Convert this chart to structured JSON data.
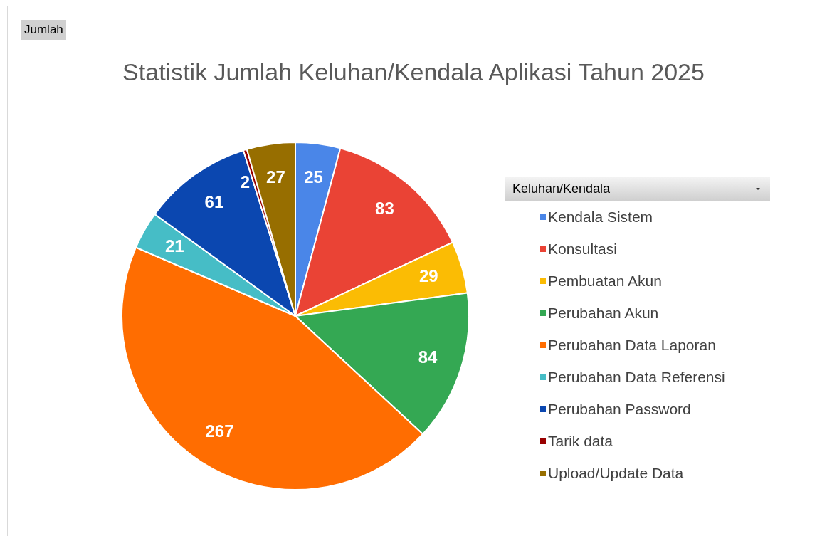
{
  "chart_data": {
    "type": "pie",
    "title": "Statistik Jumlah Keluhan/Kendala Aplikasi Tahun 2025",
    "legend_title": "Keluhan/Kendala",
    "annotations": [
      "Jumlah"
    ],
    "categories": [
      "Kendala Sistem",
      "Konsultasi",
      "Pembuatan Akun",
      "Perubahan Akun",
      "Perubahan Data Laporan",
      "Perubahan Data Referensi",
      "Perubahan Password",
      "Tarik data",
      "Upload/Update Data"
    ],
    "values": [
      25,
      83,
      29,
      84,
      267,
      21,
      61,
      2,
      27
    ],
    "colors": [
      "#4a86e8",
      "#ea4335",
      "#fbbc04",
      "#34a853",
      "#ff6d01",
      "#46bdc6",
      "#0b47b0",
      "#990000",
      "#976e00"
    ],
    "data_labels": true,
    "legend": "right"
  }
}
